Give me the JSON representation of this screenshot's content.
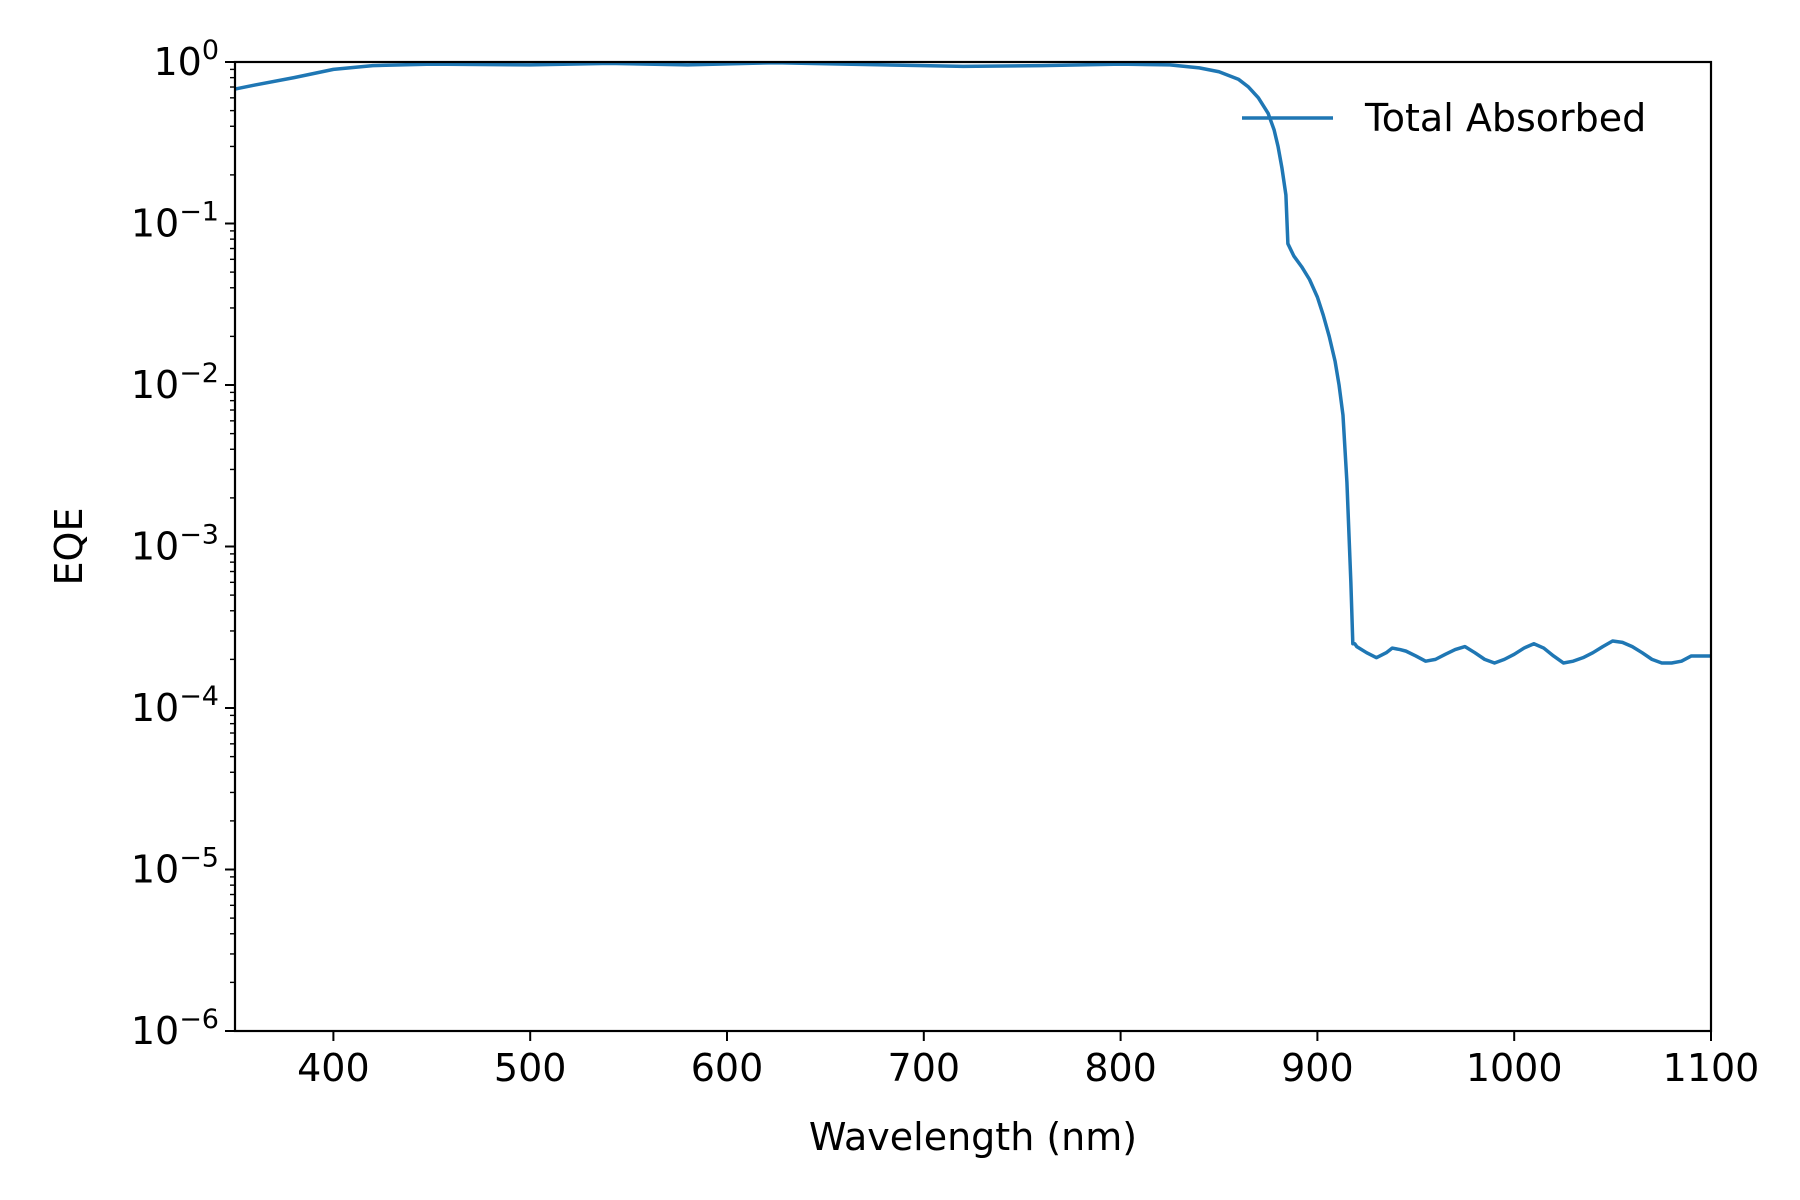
{
  "chart_data": {
    "type": "line",
    "title": "",
    "xlabel": "Wavelength (nm)",
    "ylabel": "EQE",
    "xlim": [
      350,
      1100
    ],
    "ylim": [
      1e-06,
      1
    ],
    "yscale": "log",
    "grid": false,
    "legend_position": "top-right",
    "x_ticks": [
      400,
      500,
      600,
      700,
      800,
      900,
      1000,
      1100
    ],
    "x_tick_labels": [
      "400",
      "500",
      "600",
      "700",
      "800",
      "900",
      "1000",
      "1100"
    ],
    "y_ticks": [
      {
        "value": 1e-06,
        "base": "10",
        "exp": "−6"
      },
      {
        "value": 1e-05,
        "base": "10",
        "exp": "−5"
      },
      {
        "value": 0.0001,
        "base": "10",
        "exp": "−4"
      },
      {
        "value": 0.001,
        "base": "10",
        "exp": "−3"
      },
      {
        "value": 0.01,
        "base": "10",
        "exp": "−2"
      },
      {
        "value": 0.1,
        "base": "10",
        "exp": "−1"
      },
      {
        "value": 1,
        "base": "10",
        "exp": "0"
      }
    ],
    "series": [
      {
        "name": "Total Absorbed",
        "color": "#1f77b4",
        "x": [
          350,
          360,
          380,
          400,
          420,
          450,
          500,
          540,
          580,
          625,
          660,
          700,
          720,
          760,
          800,
          825,
          840,
          850,
          860,
          865,
          870,
          875,
          878,
          880,
          882,
          884,
          885,
          888,
          892,
          896,
          900,
          903,
          906,
          909,
          911,
          913,
          915,
          917,
          918,
          919,
          920,
          925,
          930,
          935,
          938,
          942,
          945,
          950,
          955,
          960,
          965,
          970,
          975,
          980,
          985,
          990,
          995,
          1000,
          1005,
          1010,
          1015,
          1020,
          1025,
          1030,
          1035,
          1040,
          1045,
          1050,
          1055,
          1060,
          1065,
          1070,
          1075,
          1080,
          1085,
          1090,
          1095,
          1100
        ],
        "y": [
          0.68,
          0.72,
          0.8,
          0.9,
          0.95,
          0.97,
          0.96,
          0.98,
          0.96,
          0.99,
          0.97,
          0.95,
          0.94,
          0.95,
          0.97,
          0.96,
          0.92,
          0.87,
          0.78,
          0.7,
          0.6,
          0.48,
          0.38,
          0.3,
          0.22,
          0.15,
          0.075,
          0.063,
          0.054,
          0.045,
          0.035,
          0.027,
          0.02,
          0.014,
          0.01,
          0.0065,
          0.0025,
          0.0006,
          0.00025,
          0.00025,
          0.00024,
          0.00022,
          0.000205,
          0.00022,
          0.000235,
          0.00023,
          0.000225,
          0.00021,
          0.000195,
          0.0002,
          0.000215,
          0.00023,
          0.00024,
          0.00022,
          0.0002,
          0.00019,
          0.0002,
          0.000215,
          0.000235,
          0.00025,
          0.000235,
          0.00021,
          0.00019,
          0.000195,
          0.000205,
          0.00022,
          0.00024,
          0.00026,
          0.000255,
          0.00024,
          0.00022,
          0.0002,
          0.00019,
          0.00019,
          0.000195,
          0.00021,
          0.00021,
          0.00021
        ]
      }
    ]
  }
}
